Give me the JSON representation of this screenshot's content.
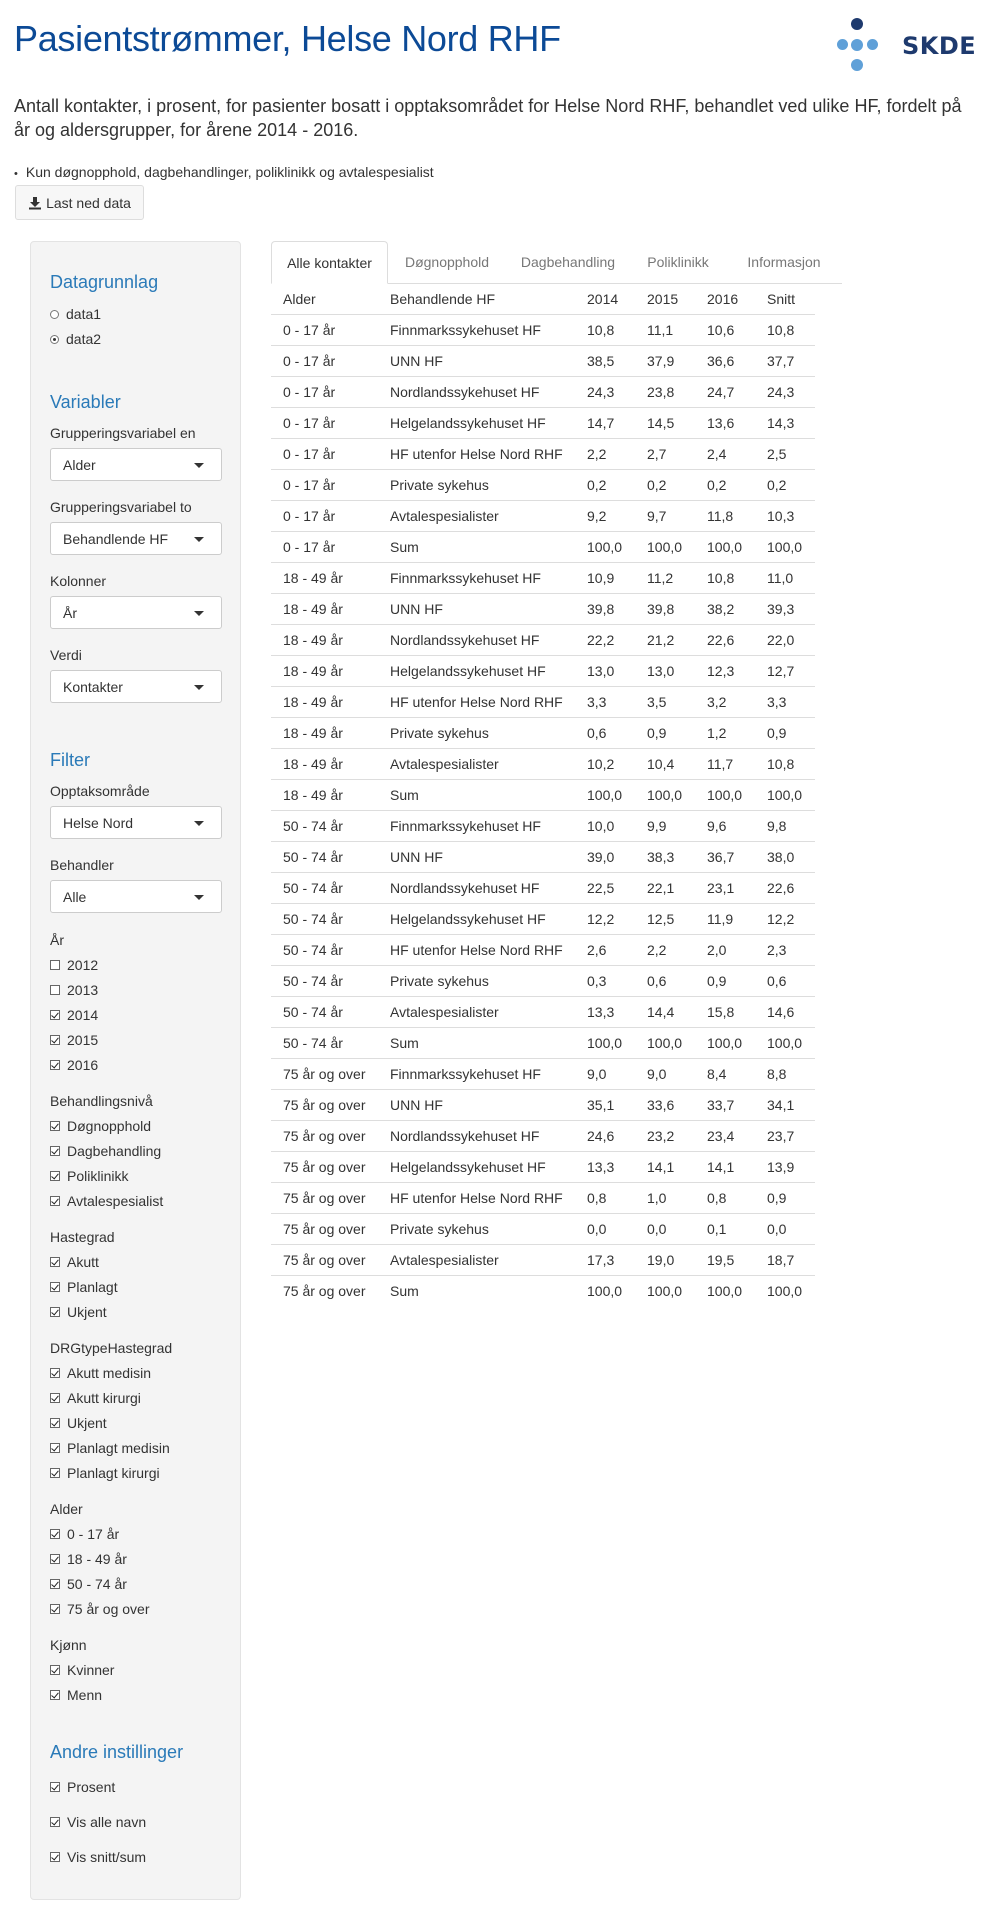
{
  "title": "Pasientstrømmer, Helse Nord RHF",
  "logo_text": "SKDE",
  "description": "Antall kontakter, i prosent, for pasienter bosatt i opptaksområdet for Helse Nord RHF, behandlet ved ulike HF, fordelt på år og aldersgrupper, for årene 2014 - 2016.",
  "note": "Kun døgnopphold, dagbehandlinger, poliklinikk og avtalespesialist",
  "download_label": "Last ned data",
  "colors": {
    "title": "#0c4a96",
    "section": "#2a7ab8",
    "logo_dark": "#1e3a6e",
    "logo_light": "#5fa0d8"
  },
  "sidebar": {
    "datagrunnlag": {
      "title": "Datagrunnlag",
      "options": [
        "data1",
        "data2"
      ],
      "selected": "data2"
    },
    "variabler": {
      "title": "Variabler",
      "fields": [
        {
          "label": "Grupperingsvariabel en",
          "value": "Alder"
        },
        {
          "label": "Grupperingsvariabel to",
          "value": "Behandlende HF"
        },
        {
          "label": "Kolonner",
          "value": "År"
        },
        {
          "label": "Verdi",
          "value": "Kontakter"
        }
      ]
    },
    "filter": {
      "title": "Filter",
      "fields": [
        {
          "label": "Opptaksområde",
          "value": "Helse Nord"
        },
        {
          "label": "Behandler",
          "value": "Alle"
        }
      ],
      "groups": [
        {
          "label": "År",
          "items": [
            {
              "label": "2012",
              "checked": false
            },
            {
              "label": "2013",
              "checked": false
            },
            {
              "label": "2014",
              "checked": true
            },
            {
              "label": "2015",
              "checked": true
            },
            {
              "label": "2016",
              "checked": true
            }
          ]
        },
        {
          "label": "Behandlingsnivå",
          "items": [
            {
              "label": "Døgnopphold",
              "checked": true
            },
            {
              "label": "Dagbehandling",
              "checked": true
            },
            {
              "label": "Poliklinikk",
              "checked": true
            },
            {
              "label": "Avtalespesialist",
              "checked": true
            }
          ]
        },
        {
          "label": "Hastegrad",
          "items": [
            {
              "label": "Akutt",
              "checked": true
            },
            {
              "label": "Planlagt",
              "checked": true
            },
            {
              "label": "Ukjent",
              "checked": true
            }
          ]
        },
        {
          "label": "DRGtypeHastegrad",
          "items": [
            {
              "label": "Akutt medisin",
              "checked": true
            },
            {
              "label": "Akutt kirurgi",
              "checked": true
            },
            {
              "label": "Ukjent",
              "checked": true
            },
            {
              "label": "Planlagt medisin",
              "checked": true
            },
            {
              "label": "Planlagt kirurgi",
              "checked": true
            }
          ]
        },
        {
          "label": "Alder",
          "items": [
            {
              "label": "0 - 17 år",
              "checked": true
            },
            {
              "label": "18 - 49 år",
              "checked": true
            },
            {
              "label": "50 - 74 år",
              "checked": true
            },
            {
              "label": "75 år og over",
              "checked": true
            }
          ]
        },
        {
          "label": "Kjønn",
          "items": [
            {
              "label": "Kvinner",
              "checked": true
            },
            {
              "label": "Menn",
              "checked": true
            }
          ]
        }
      ]
    },
    "andre": {
      "title": "Andre instillinger",
      "items": [
        {
          "label": "Prosent",
          "checked": true
        },
        {
          "label": "Vis alle navn",
          "checked": true
        },
        {
          "label": "Vis snitt/sum",
          "checked": true
        }
      ]
    }
  },
  "tabs": [
    {
      "label": "Alle kontakter",
      "active": true
    },
    {
      "label": "Døgnopphold",
      "active": false
    },
    {
      "label": "Dagbehandling",
      "active": false
    },
    {
      "label": "Poliklinikk",
      "active": false
    },
    {
      "label": "Informasjon",
      "active": false
    }
  ],
  "table": {
    "headers": [
      "Alder",
      "Behandlende HF",
      "2014",
      "2015",
      "2016",
      "Snitt"
    ],
    "rows": [
      [
        "0 - 17 år",
        "Finnmarkssykehuset HF",
        "10,8",
        "11,1",
        "10,6",
        "10,8"
      ],
      [
        "0 - 17 år",
        "UNN HF",
        "38,5",
        "37,9",
        "36,6",
        "37,7"
      ],
      [
        "0 - 17 år",
        "Nordlandssykehuset HF",
        "24,3",
        "23,8",
        "24,7",
        "24,3"
      ],
      [
        "0 - 17 år",
        "Helgelandssykehuset HF",
        "14,7",
        "14,5",
        "13,6",
        "14,3"
      ],
      [
        "0 - 17 år",
        "HF utenfor Helse Nord RHF",
        "2,2",
        "2,7",
        "2,4",
        "2,5"
      ],
      [
        "0 - 17 år",
        "Private sykehus",
        "0,2",
        "0,2",
        "0,2",
        "0,2"
      ],
      [
        "0 - 17 år",
        "Avtalespesialister",
        "9,2",
        "9,7",
        "11,8",
        "10,3"
      ],
      [
        "0 - 17 år",
        "Sum",
        "100,0",
        "100,0",
        "100,0",
        "100,0"
      ],
      [
        "18 - 49 år",
        "Finnmarkssykehuset HF",
        "10,9",
        "11,2",
        "10,8",
        "11,0"
      ],
      [
        "18 - 49 år",
        "UNN HF",
        "39,8",
        "39,8",
        "38,2",
        "39,3"
      ],
      [
        "18 - 49 år",
        "Nordlandssykehuset HF",
        "22,2",
        "21,2",
        "22,6",
        "22,0"
      ],
      [
        "18 - 49 år",
        "Helgelandssykehuset HF",
        "13,0",
        "13,0",
        "12,3",
        "12,7"
      ],
      [
        "18 - 49 år",
        "HF utenfor Helse Nord RHF",
        "3,3",
        "3,5",
        "3,2",
        "3,3"
      ],
      [
        "18 - 49 år",
        "Private sykehus",
        "0,6",
        "0,9",
        "1,2",
        "0,9"
      ],
      [
        "18 - 49 år",
        "Avtalespesialister",
        "10,2",
        "10,4",
        "11,7",
        "10,8"
      ],
      [
        "18 - 49 år",
        "Sum",
        "100,0",
        "100,0",
        "100,0",
        "100,0"
      ],
      [
        "50 - 74 år",
        "Finnmarkssykehuset HF",
        "10,0",
        "9,9",
        "9,6",
        "9,8"
      ],
      [
        "50 - 74 år",
        "UNN HF",
        "39,0",
        "38,3",
        "36,7",
        "38,0"
      ],
      [
        "50 - 74 år",
        "Nordlandssykehuset HF",
        "22,5",
        "22,1",
        "23,1",
        "22,6"
      ],
      [
        "50 - 74 år",
        "Helgelandssykehuset HF",
        "12,2",
        "12,5",
        "11,9",
        "12,2"
      ],
      [
        "50 - 74 år",
        "HF utenfor Helse Nord RHF",
        "2,6",
        "2,2",
        "2,0",
        "2,3"
      ],
      [
        "50 - 74 år",
        "Private sykehus",
        "0,3",
        "0,6",
        "0,9",
        "0,6"
      ],
      [
        "50 - 74 år",
        "Avtalespesialister",
        "13,3",
        "14,4",
        "15,8",
        "14,6"
      ],
      [
        "50 - 74 år",
        "Sum",
        "100,0",
        "100,0",
        "100,0",
        "100,0"
      ],
      [
        "75 år og over",
        "Finnmarkssykehuset HF",
        "9,0",
        "9,0",
        "8,4",
        "8,8"
      ],
      [
        "75 år og over",
        "UNN HF",
        "35,1",
        "33,6",
        "33,7",
        "34,1"
      ],
      [
        "75 år og over",
        "Nordlandssykehuset HF",
        "24,6",
        "23,2",
        "23,4",
        "23,7"
      ],
      [
        "75 år og over",
        "Helgelandssykehuset HF",
        "13,3",
        "14,1",
        "14,1",
        "13,9"
      ],
      [
        "75 år og over",
        "HF utenfor Helse Nord RHF",
        "0,8",
        "1,0",
        "0,8",
        "0,9"
      ],
      [
        "75 år og over",
        "Private sykehus",
        "0,0",
        "0,0",
        "0,1",
        "0,0"
      ],
      [
        "75 år og over",
        "Avtalespesialister",
        "17,3",
        "19,0",
        "19,5",
        "18,7"
      ],
      [
        "75 år og over",
        "Sum",
        "100,0",
        "100,0",
        "100,0",
        "100,0"
      ]
    ]
  }
}
